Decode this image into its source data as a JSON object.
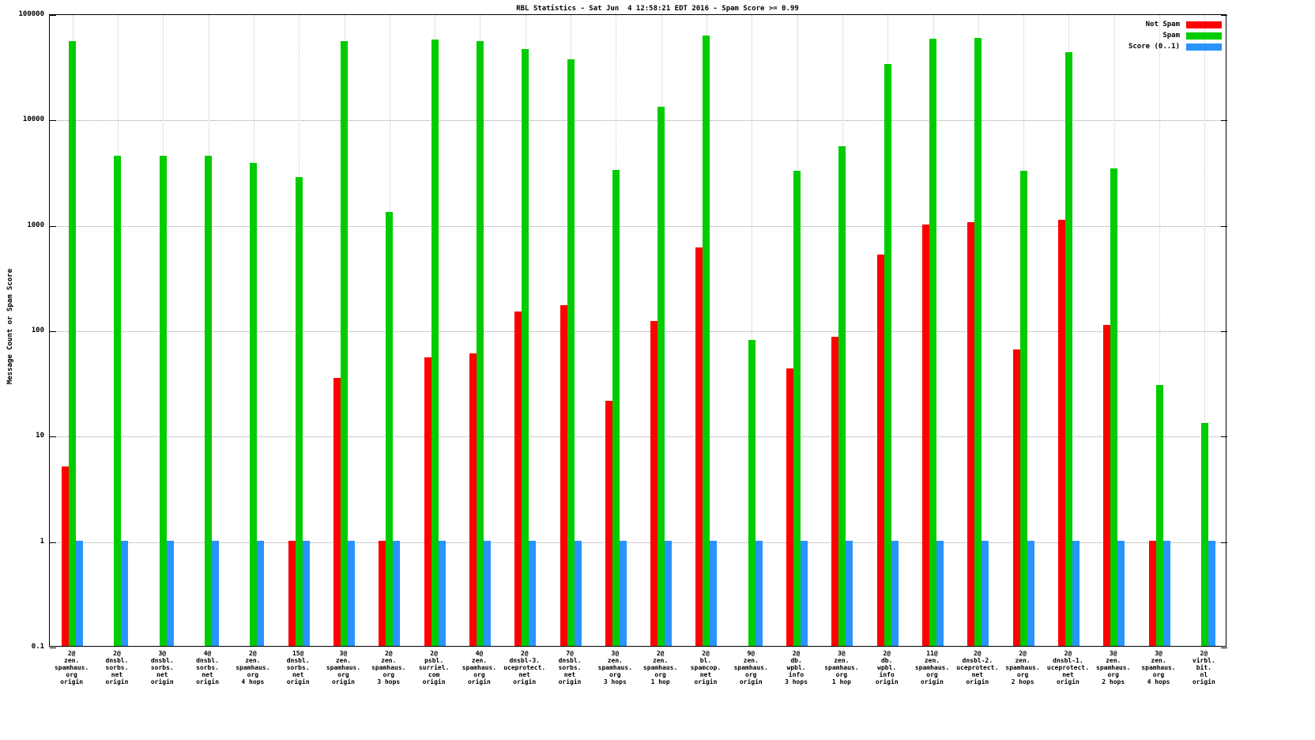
{
  "title": "RBL Statistics - Sat Jun  4 12:58:21 EDT 2016 - Spam Score >= 0.99",
  "ylabel": "Message Count or Spam Score",
  "legend": [
    {
      "label": "Not Spam",
      "color": "#ff0000"
    },
    {
      "label": "Spam",
      "color": "#00cc00"
    },
    {
      "label": "Score (0..1)",
      "color": "#2994ff"
    }
  ],
  "chart_data": {
    "type": "bar",
    "scale": "log",
    "title": "RBL Statistics - Sat Jun  4 12:58:21 EDT 2016 - Spam Score >= 0.99",
    "xlabel": "",
    "ylabel": "Message Count or Spam Score",
    "ylim": [
      0.1,
      100000
    ],
    "yticks": [
      0.1,
      1,
      10,
      100,
      1000,
      10000,
      100000
    ],
    "ytick_labels": [
      "0.1",
      "1",
      "10",
      "100",
      "1000",
      "10000",
      "100000"
    ],
    "grid": true,
    "legend_position": "top-right",
    "categories": [
      [
        "2@",
        "zen.",
        "spamhaus.",
        "org",
        "origin"
      ],
      [
        "2@",
        "dnsbl.",
        "sorbs.",
        "net",
        "origin"
      ],
      [
        "3@",
        "dnsbl.",
        "sorbs.",
        "net",
        "origin"
      ],
      [
        "4@",
        "dnsbl.",
        "sorbs.",
        "net",
        "origin"
      ],
      [
        "2@",
        "zen.",
        "spamhaus.",
        "org",
        "4 hops"
      ],
      [
        "15@",
        "dnsbl.",
        "sorbs.",
        "net",
        "origin"
      ],
      [
        "3@",
        "zen.",
        "spamhaus.",
        "org",
        "origin"
      ],
      [
        "2@",
        "zen.",
        "spamhaus.",
        "org",
        "3 hops"
      ],
      [
        "2@",
        "psbl.",
        "surriel.",
        "com",
        "origin"
      ],
      [
        "4@",
        "zen.",
        "spamhaus.",
        "org",
        "origin"
      ],
      [
        "2@",
        "dnsbl-3.",
        "uceprotect.",
        "net",
        "origin"
      ],
      [
        "7@",
        "dnsbl.",
        "sorbs.",
        "net",
        "origin"
      ],
      [
        "3@",
        "zen.",
        "spamhaus.",
        "org",
        "3 hops"
      ],
      [
        "2@",
        "zen.",
        "spamhaus.",
        "org",
        "1 hop"
      ],
      [
        "2@",
        "bl.",
        "spamcop.",
        "net",
        "origin"
      ],
      [
        "9@",
        "zen.",
        "spamhaus.",
        "org",
        "origin"
      ],
      [
        "2@",
        "db.",
        "wpbl.",
        "info",
        "3 hops"
      ],
      [
        "3@",
        "zen.",
        "spamhaus.",
        "org",
        "1 hop"
      ],
      [
        "2@",
        "db.",
        "wpbl.",
        "info",
        "origin"
      ],
      [
        "11@",
        "zen.",
        "spamhaus.",
        "org",
        "origin"
      ],
      [
        "2@",
        "dnsbl-2.",
        "uceprotect.",
        "net",
        "origin"
      ],
      [
        "2@",
        "zen.",
        "spamhaus.",
        "org",
        "2 hops"
      ],
      [
        "2@",
        "dnsbl-1.",
        "uceprotect.",
        "net",
        "origin"
      ],
      [
        "3@",
        "zen.",
        "spamhaus.",
        "org",
        "2 hops"
      ],
      [
        "3@",
        "zen.",
        "spamhaus.",
        "org",
        "4 hops"
      ],
      [
        "2@",
        "virbl.",
        "bit.",
        "nl",
        "origin"
      ]
    ],
    "series": [
      {
        "name": "Not Spam",
        "color": "#ff0000",
        "values": [
          5,
          0,
          0,
          0,
          0,
          1,
          35,
          1,
          55,
          60,
          150,
          170,
          21,
          120,
          600,
          0,
          43,
          85,
          520,
          1000,
          1050,
          65,
          1100,
          110,
          1,
          0
        ]
      },
      {
        "name": "Spam",
        "color": "#00cc00",
        "values": [
          55000,
          4500,
          4500,
          4500,
          3800,
          2800,
          55000,
          1300,
          57000,
          55000,
          46000,
          37000,
          3300,
          13000,
          62000,
          80,
          3200,
          5500,
          33000,
          58000,
          59000,
          3200,
          43000,
          3400,
          30,
          13
        ]
      },
      {
        "name": "Score (0..1)",
        "color": "#2994ff",
        "values": [
          1,
          1,
          1,
          1,
          1,
          1,
          1,
          1,
          1,
          1,
          1,
          1,
          1,
          1,
          1,
          1,
          1,
          1,
          1,
          1,
          1,
          1,
          1,
          1,
          1,
          1
        ]
      }
    ]
  }
}
